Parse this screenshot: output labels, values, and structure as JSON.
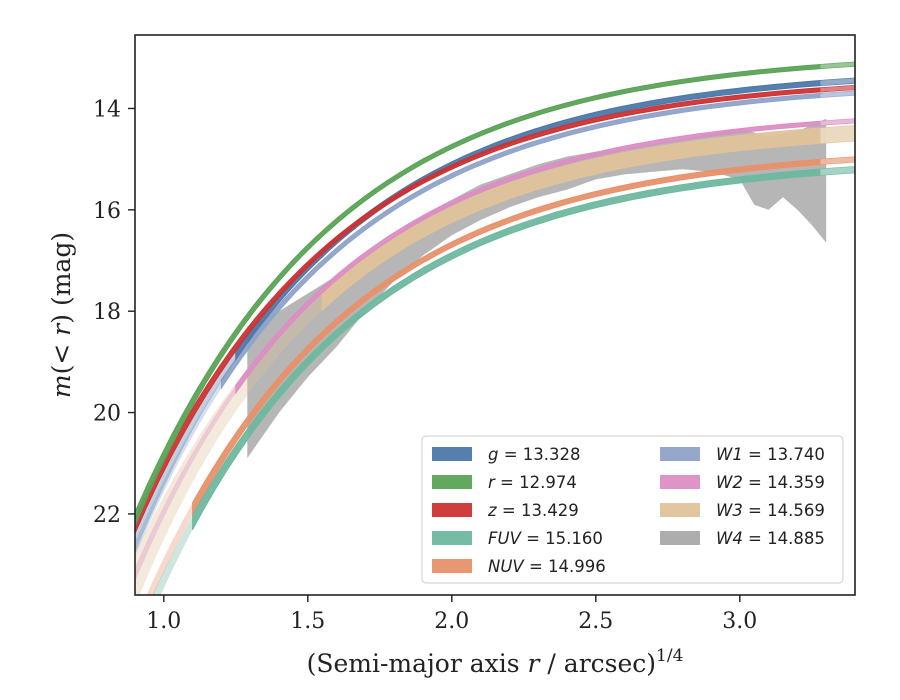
{
  "chart_data": {
    "type": "area",
    "xlabel": "(Semi-major axis r / arcsec)^1/4",
    "ylabel": "m(< r) (mag)",
    "xlim": [
      0.9,
      3.4
    ],
    "ylim": [
      23.6,
      12.55
    ],
    "y_inverted": true,
    "x_ticks": [
      "1.0",
      "1.5",
      "2.0",
      "2.5",
      "3.0"
    ],
    "y_ticks": [
      "14",
      "16",
      "18",
      "20",
      "22"
    ],
    "grid": false,
    "legend_placement": "lower-right",
    "series": [
      {
        "name": "g = 13.328",
        "label_lhs": "g",
        "label_value": "13.328",
        "color": "#4c78a8",
        "x_start": 0.9,
        "x_end": 3.4,
        "m_inf": 13.2,
        "m_at_r09": 22.6,
        "width": 0.1,
        "fade_below": 1.25
      },
      {
        "name": "r = 12.974",
        "label_lhs": "r",
        "label_value": "12.974",
        "color": "#5aa356",
        "x_start": 0.9,
        "x_end": 3.4,
        "m_inf": 12.88,
        "m_at_r09": 22.1,
        "width": 0.08,
        "fade_below": 0.9
      },
      {
        "name": "z = 13.429",
        "label_lhs": "z",
        "label_value": "13.429",
        "color": "#cc3333",
        "x_start": 0.9,
        "x_end": 3.4,
        "m_inf": 13.35,
        "m_at_r09": 22.25,
        "width": 0.08,
        "fade_below": 0.9
      },
      {
        "name": "FUV = 15.160",
        "label_lhs": "FUV",
        "label_value": "15.160",
        "color": "#6fb8a0",
        "x_start": 0.9,
        "x_end": 3.4,
        "m_inf": 14.95,
        "m_at_r09": 24.6,
        "width": 0.12,
        "fade_below": 1.1
      },
      {
        "name": "NUV = 14.996",
        "label_lhs": "NUV",
        "label_value": "14.996",
        "color": "#e8916a",
        "x_start": 0.9,
        "x_end": 3.4,
        "m_inf": 14.75,
        "m_at_r09": 24.3,
        "width": 0.1,
        "fade_below": 1.1
      },
      {
        "name": "W1 = 13.740",
        "label_lhs": "W1",
        "label_value": "13.740",
        "color": "#8fa3c8",
        "x_start": 0.9,
        "x_end": 3.4,
        "m_inf": 13.45,
        "m_at_r09": 22.7,
        "width": 0.08,
        "fade_below": 1.2
      },
      {
        "name": "W2 = 14.359",
        "label_lhs": "W2",
        "label_value": "14.359",
        "color": "#dc8ec4",
        "x_start": 0.9,
        "x_end": 3.4,
        "m_inf": 14.0,
        "m_at_r09": 23.2,
        "width": 0.08,
        "fade_below": 1.25
      },
      {
        "name": "W3 = 14.569",
        "label_lhs": "W3",
        "label_value": "14.569",
        "color": "#e0c39a",
        "x_start": 0.9,
        "x_end": 3.4,
        "m_inf": 14.25,
        "m_at_r09": 23.3,
        "width": 0.3,
        "fade_below": 1.55
      },
      {
        "name": "W4 = 14.885",
        "label_lhs": "W4",
        "label_value": "14.885",
        "color": "#a9a9a9",
        "x_start": 1.29,
        "x_end": 3.3,
        "upper": [
          [
            1.29,
            18.3
          ],
          [
            1.4,
            18.0
          ],
          [
            1.5,
            17.65
          ],
          [
            1.6,
            17.3
          ],
          [
            1.7,
            16.9
          ],
          [
            1.8,
            16.5
          ],
          [
            1.9,
            16.1
          ],
          [
            2.0,
            15.8
          ],
          [
            2.1,
            15.5
          ],
          [
            2.2,
            15.3
          ],
          [
            2.3,
            15.1
          ],
          [
            2.4,
            14.95
          ],
          [
            2.5,
            14.85
          ],
          [
            2.6,
            14.8
          ],
          [
            2.7,
            14.7
          ],
          [
            2.8,
            14.6
          ],
          [
            2.9,
            14.5
          ],
          [
            3.0,
            14.4
          ],
          [
            3.1,
            14.55
          ],
          [
            3.2,
            14.45
          ],
          [
            3.3,
            14.2
          ]
        ],
        "lower": [
          [
            1.29,
            20.9
          ],
          [
            1.4,
            20.0
          ],
          [
            1.5,
            19.3
          ],
          [
            1.6,
            18.7
          ],
          [
            1.7,
            18.0
          ],
          [
            1.8,
            17.4
          ],
          [
            1.9,
            16.9
          ],
          [
            2.0,
            16.5
          ],
          [
            2.1,
            16.2
          ],
          [
            2.2,
            15.95
          ],
          [
            2.3,
            15.75
          ],
          [
            2.4,
            15.6
          ],
          [
            2.5,
            15.4
          ],
          [
            2.6,
            15.3
          ],
          [
            2.7,
            15.25
          ],
          [
            2.8,
            15.2
          ],
          [
            2.9,
            15.25
          ],
          [
            3.0,
            15.4
          ],
          [
            3.05,
            15.9
          ],
          [
            3.1,
            16.0
          ],
          [
            3.15,
            15.75
          ],
          [
            3.2,
            16.0
          ],
          [
            3.25,
            16.3
          ],
          [
            3.3,
            16.65
          ]
        ]
      }
    ]
  }
}
